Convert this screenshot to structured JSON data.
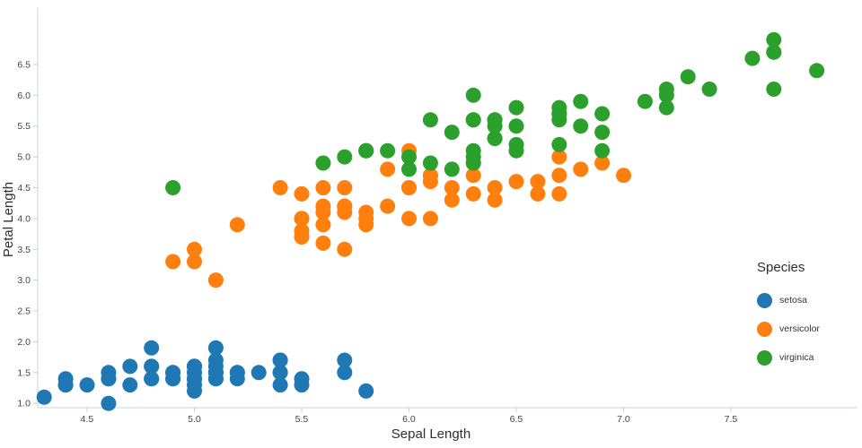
{
  "chart_data": {
    "type": "scatter",
    "title": "",
    "xlabel": "Sepal Length",
    "ylabel": "Petal Length",
    "xlim": [
      4.27,
      8.09
    ],
    "ylim": [
      0.93,
      7.43
    ],
    "x_tick_values": [
      4.5,
      5.0,
      5.5,
      6.0,
      6.5,
      7.0,
      7.5
    ],
    "x_tick_labels": [
      "4.5",
      "5.0",
      "5.5",
      "6.0",
      "6.5",
      "7.0",
      "7.5"
    ],
    "y_tick_values": [
      1.0,
      1.5,
      2.0,
      2.5,
      3.0,
      3.5,
      4.0,
      4.5,
      5.0,
      5.5,
      6.0,
      6.5
    ],
    "y_tick_labels": [
      "1.0",
      "1.5",
      "2.0",
      "2.5",
      "3.0",
      "3.5",
      "4.0",
      "4.5",
      "5.0",
      "5.5",
      "6.0",
      "6.5"
    ],
    "grid": false,
    "style": {
      "axis_color": "#c8d0e0",
      "tick_label_color": "#444444",
      "axis_title_color": "#2f2f2f"
    },
    "legend": {
      "title": "Species",
      "position": "right",
      "entries": [
        {
          "label": "setosa",
          "color": "#1f77b4"
        },
        {
          "label": "versicolor",
          "color": "#ff7f0e"
        },
        {
          "label": "virginica",
          "color": "#2ca02c"
        }
      ]
    },
    "series": [
      {
        "name": "setosa",
        "color": "#1f77b4",
        "points": [
          [
            5.1,
            1.4
          ],
          [
            4.9,
            1.4
          ],
          [
            4.7,
            1.3
          ],
          [
            4.6,
            1.5
          ],
          [
            5.0,
            1.4
          ],
          [
            5.4,
            1.7
          ],
          [
            4.6,
            1.4
          ],
          [
            5.0,
            1.5
          ],
          [
            4.4,
            1.4
          ],
          [
            4.9,
            1.5
          ],
          [
            5.4,
            1.5
          ],
          [
            4.8,
            1.6
          ],
          [
            4.8,
            1.4
          ],
          [
            4.3,
            1.1
          ],
          [
            5.8,
            1.2
          ],
          [
            5.7,
            1.5
          ],
          [
            5.4,
            1.3
          ],
          [
            5.1,
            1.4
          ],
          [
            5.7,
            1.7
          ],
          [
            5.1,
            1.5
          ],
          [
            5.4,
            1.7
          ],
          [
            5.1,
            1.5
          ],
          [
            4.6,
            1.0
          ],
          [
            5.1,
            1.7
          ],
          [
            4.8,
            1.9
          ],
          [
            5.0,
            1.6
          ],
          [
            5.0,
            1.6
          ],
          [
            5.2,
            1.5
          ],
          [
            5.2,
            1.4
          ],
          [
            4.7,
            1.6
          ],
          [
            4.8,
            1.6
          ],
          [
            5.4,
            1.5
          ],
          [
            5.2,
            1.5
          ],
          [
            5.5,
            1.4
          ],
          [
            4.9,
            1.5
          ],
          [
            5.0,
            1.2
          ],
          [
            5.5,
            1.3
          ],
          [
            4.9,
            1.4
          ],
          [
            4.4,
            1.3
          ],
          [
            5.1,
            1.5
          ],
          [
            5.0,
            1.3
          ],
          [
            4.5,
            1.3
          ],
          [
            4.4,
            1.3
          ],
          [
            5.0,
            1.6
          ],
          [
            5.1,
            1.9
          ],
          [
            4.8,
            1.4
          ],
          [
            5.1,
            1.6
          ],
          [
            4.6,
            1.4
          ],
          [
            5.3,
            1.5
          ],
          [
            5.0,
            1.4
          ]
        ]
      },
      {
        "name": "versicolor",
        "color": "#ff7f0e",
        "points": [
          [
            7.0,
            4.7
          ],
          [
            6.4,
            4.5
          ],
          [
            6.9,
            4.9
          ],
          [
            5.5,
            4.0
          ],
          [
            6.5,
            4.6
          ],
          [
            5.7,
            4.5
          ],
          [
            6.3,
            4.7
          ],
          [
            4.9,
            3.3
          ],
          [
            6.6,
            4.6
          ],
          [
            5.2,
            3.9
          ],
          [
            5.0,
            3.5
          ],
          [
            5.9,
            4.2
          ],
          [
            6.0,
            4.0
          ],
          [
            6.1,
            4.7
          ],
          [
            5.6,
            3.6
          ],
          [
            6.7,
            4.4
          ],
          [
            5.6,
            4.5
          ],
          [
            5.8,
            4.1
          ],
          [
            6.2,
            4.5
          ],
          [
            5.6,
            3.9
          ],
          [
            5.9,
            4.8
          ],
          [
            6.1,
            4.0
          ],
          [
            6.3,
            4.9
          ],
          [
            6.1,
            4.7
          ],
          [
            6.4,
            4.3
          ],
          [
            6.6,
            4.4
          ],
          [
            6.8,
            4.8
          ],
          [
            6.7,
            5.0
          ],
          [
            6.0,
            4.5
          ],
          [
            5.7,
            3.5
          ],
          [
            5.5,
            3.8
          ],
          [
            5.5,
            3.7
          ],
          [
            5.8,
            3.9
          ],
          [
            6.0,
            5.1
          ],
          [
            5.4,
            4.5
          ],
          [
            6.0,
            4.5
          ],
          [
            6.7,
            4.7
          ],
          [
            6.3,
            4.4
          ],
          [
            5.6,
            4.1
          ],
          [
            5.5,
            4.0
          ],
          [
            5.5,
            4.4
          ],
          [
            6.1,
            4.6
          ],
          [
            5.8,
            4.0
          ],
          [
            5.0,
            3.3
          ],
          [
            5.6,
            4.2
          ],
          [
            5.7,
            4.2
          ],
          [
            5.7,
            4.2
          ],
          [
            6.2,
            4.3
          ],
          [
            5.1,
            3.0
          ],
          [
            5.7,
            4.1
          ]
        ]
      },
      {
        "name": "virginica",
        "color": "#2ca02c",
        "points": [
          [
            6.3,
            6.0
          ],
          [
            5.8,
            5.1
          ],
          [
            7.1,
            5.9
          ],
          [
            6.3,
            5.6
          ],
          [
            6.5,
            5.8
          ],
          [
            7.6,
            6.6
          ],
          [
            4.9,
            4.5
          ],
          [
            7.3,
            6.3
          ],
          [
            6.7,
            5.8
          ],
          [
            7.2,
            6.1
          ],
          [
            6.5,
            5.1
          ],
          [
            6.4,
            5.3
          ],
          [
            6.8,
            5.5
          ],
          [
            5.7,
            5.0
          ],
          [
            5.8,
            5.1
          ],
          [
            6.4,
            5.3
          ],
          [
            6.5,
            5.5
          ],
          [
            7.7,
            6.7
          ],
          [
            7.7,
            6.9
          ],
          [
            6.0,
            5.0
          ],
          [
            6.9,
            5.7
          ],
          [
            5.6,
            4.9
          ],
          [
            7.7,
            6.7
          ],
          [
            6.3,
            4.9
          ],
          [
            6.7,
            5.7
          ],
          [
            7.2,
            6.0
          ],
          [
            6.2,
            4.8
          ],
          [
            6.1,
            4.9
          ],
          [
            6.4,
            5.6
          ],
          [
            7.2,
            5.8
          ],
          [
            7.4,
            6.1
          ],
          [
            7.9,
            6.4
          ],
          [
            6.4,
            5.6
          ],
          [
            6.3,
            5.1
          ],
          [
            6.1,
            5.6
          ],
          [
            7.7,
            6.1
          ],
          [
            6.3,
            5.6
          ],
          [
            6.4,
            5.5
          ],
          [
            6.0,
            4.8
          ],
          [
            6.9,
            5.4
          ],
          [
            6.7,
            5.6
          ],
          [
            6.9,
            5.1
          ],
          [
            5.8,
            5.1
          ],
          [
            6.8,
            5.9
          ],
          [
            6.7,
            5.7
          ],
          [
            6.7,
            5.2
          ],
          [
            6.3,
            5.0
          ],
          [
            6.5,
            5.2
          ],
          [
            6.2,
            5.4
          ],
          [
            5.9,
            5.1
          ]
        ]
      }
    ]
  }
}
